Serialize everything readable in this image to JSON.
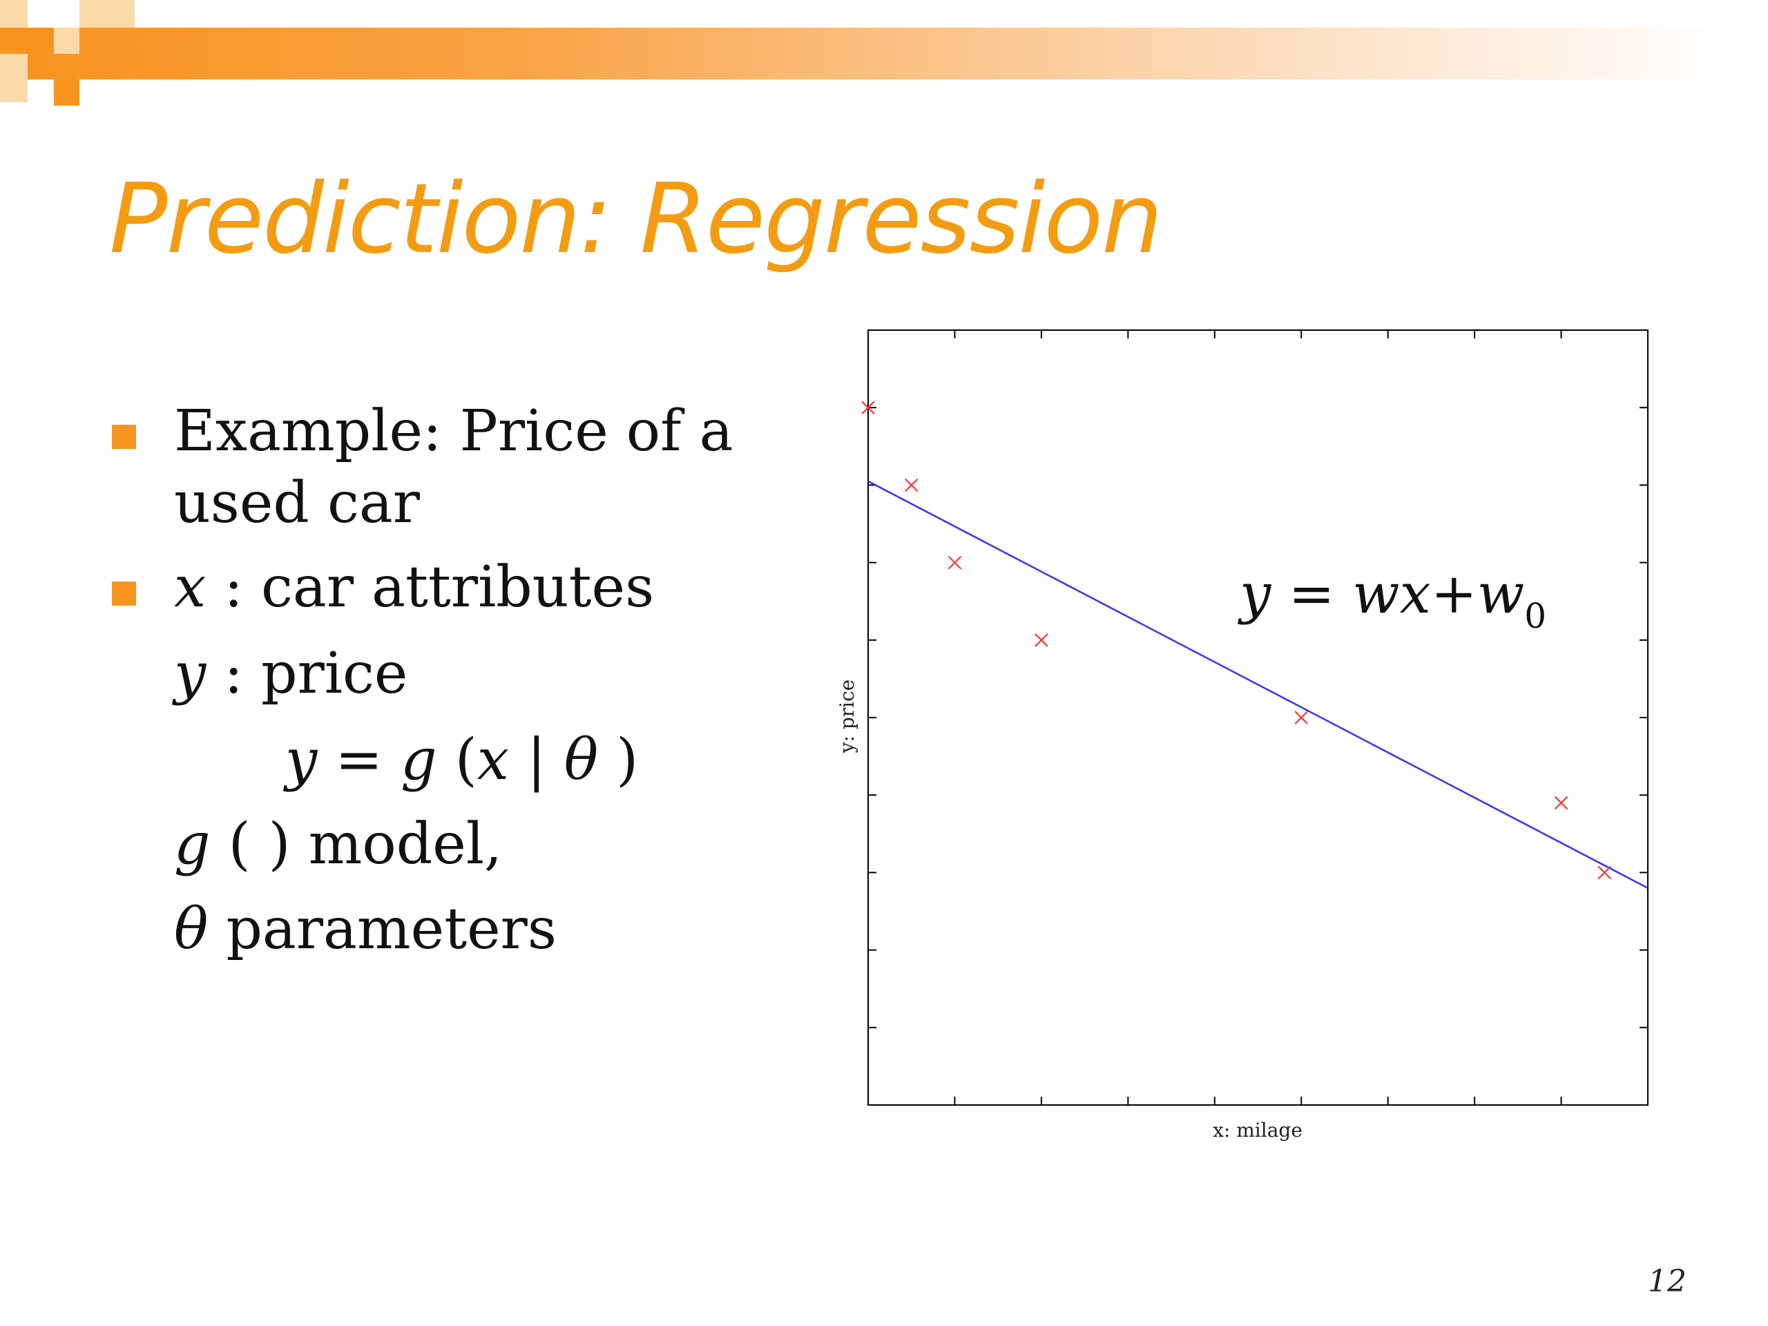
{
  "slide": {
    "title": "Prediction: Regression",
    "page_number": "12",
    "accent_color": "#f7941d"
  },
  "bullets": {
    "b1_line1": "Example: Price of a",
    "b1_line2": "used car",
    "b2_x": "x",
    "b2_rest": " : car attributes",
    "y_sym": "y",
    "y_rest": " : price",
    "eq_y": "y",
    "eq_eq": " = ",
    "eq_g": "g",
    "eq_open": " (",
    "eq_x": "x",
    "eq_bar": " | ",
    "eq_theta": "θ",
    "eq_close": " )",
    "g_sym": "g",
    "g_rest": " ( ) model,",
    "theta_sym": "θ",
    "theta_rest": " parameters"
  },
  "chart_data": {
    "type": "scatter",
    "title": "",
    "xlabel": "x: milage",
    "ylabel": "y: price",
    "xlim": [
      0,
      9
    ],
    "ylim": [
      0,
      10
    ],
    "grid": false,
    "x": [
      0,
      0.5,
      1,
      2,
      5,
      8,
      8.5
    ],
    "y": [
      9,
      8,
      7,
      6,
      5,
      3.9,
      3
    ],
    "marker": "x",
    "point_color": "#ff3333",
    "fit_line": {
      "x": [
        0,
        9
      ],
      "y": [
        8.05,
        2.8
      ],
      "color": "#3333ff"
    },
    "annotation": {
      "y": "y",
      "eq": " = ",
      "w": "w",
      "x": "x",
      "plus": "+",
      "w0": "w",
      "sub0": "0"
    }
  }
}
